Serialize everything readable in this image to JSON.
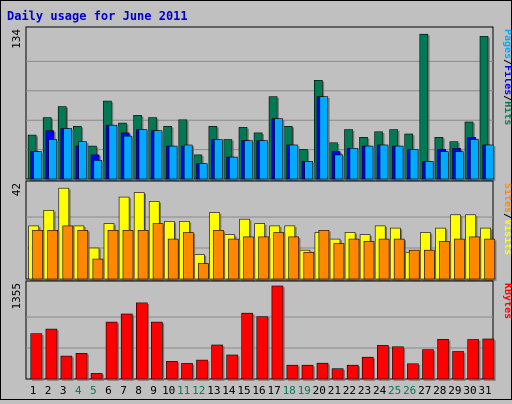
{
  "chart_data": {
    "type": "bar",
    "title": "Daily usage for June 2011",
    "categories": [
      "1",
      "2",
      "3",
      "4",
      "5",
      "6",
      "7",
      "8",
      "9",
      "10",
      "11",
      "12",
      "13",
      "14",
      "15",
      "16",
      "17",
      "18",
      "19",
      "20",
      "21",
      "22",
      "23",
      "24",
      "25",
      "26",
      "27",
      "28",
      "29",
      "30",
      "31"
    ],
    "weekend_days": [
      "4",
      "5",
      "11",
      "12",
      "18",
      "19",
      "25",
      "26"
    ],
    "colors": {
      "title": "#0000cc",
      "hits": "#007a55",
      "files": "#0000ff",
      "pages": "#00aaff",
      "visits": "#ffff00",
      "sites": "#ff8800",
      "kbytes": "#ff0000",
      "weekday_label": "#000000",
      "weekend_label": "#007a55"
    },
    "panels": [
      {
        "id": "hits-files-pages",
        "ymax_label": "134",
        "ylim": [
          0,
          134
        ],
        "axis_title_parts": [
          "Pages",
          "/",
          "Files",
          "/",
          "Hits"
        ],
        "series": [
          {
            "name": "Hits",
            "values": [
              40,
              56,
              66,
              48,
              30,
              71,
              51,
              58,
              56,
              48,
              54,
              22,
              48,
              36,
              47,
              42,
              75,
              48,
              27,
              90,
              33,
              45,
              38,
              43,
              45,
              41,
              132,
              38,
              34,
              52,
              130
            ]
          },
          {
            "name": "Files",
            "values": [
              25,
              44,
              46,
              30,
              22,
              49,
              42,
              45,
              44,
              30,
              30,
              14,
              36,
              20,
              35,
              35,
              55,
              31,
              16,
              75,
              25,
              28,
              30,
              31,
              30,
              27,
              16,
              27,
              28,
              38,
              31
            ]
          },
          {
            "name": "Pages",
            "values": [
              25,
              36,
              46,
              34,
              17,
              49,
              39,
              45,
              44,
              30,
              31,
              14,
              36,
              20,
              35,
              35,
              55,
              31,
              16,
              75,
              22,
              28,
              30,
              31,
              30,
              27,
              16,
              25,
              25,
              36,
              31
            ]
          }
        ]
      },
      {
        "id": "visits-sites",
        "ymax_label": "42",
        "ylim": [
          0,
          42
        ],
        "axis_title_parts": [
          "Sites",
          "/",
          "Visits"
        ],
        "series": [
          {
            "name": "Visits",
            "values": [
              24,
              31,
              41,
              24,
              14,
              25,
              37,
              39,
              35,
              26,
              26,
              11,
              30,
              20,
              27,
              25,
              24,
              24,
              13,
              21,
              18,
              21,
              20,
              24,
              23,
              12,
              21,
              23,
              29,
              29,
              23
            ]
          },
          {
            "name": "Sites",
            "values": [
              22,
              22,
              24,
              22,
              9,
              22,
              22,
              22,
              25,
              18,
              21,
              7,
              22,
              18,
              19,
              19,
              21,
              19,
              12,
              22,
              16,
              18,
              17,
              18,
              18,
              13,
              13,
              17,
              18,
              19,
              18
            ]
          }
        ]
      },
      {
        "id": "kbytes",
        "ymax_label": "1355",
        "ylim": [
          0,
          1355
        ],
        "axis_title_parts": [
          "KBytes"
        ],
        "series": [
          {
            "name": "KBytes",
            "values": [
              660,
              727,
              334,
              374,
              82,
              829,
              947,
              1109,
              829,
              258,
              228,
              276,
              495,
              350,
              959,
              909,
              1355,
              201,
              201,
              230,
              150,
              201,
              317,
              489,
              469,
              221,
              427,
              579,
              401,
              575,
              583
            ]
          }
        ]
      }
    ]
  }
}
